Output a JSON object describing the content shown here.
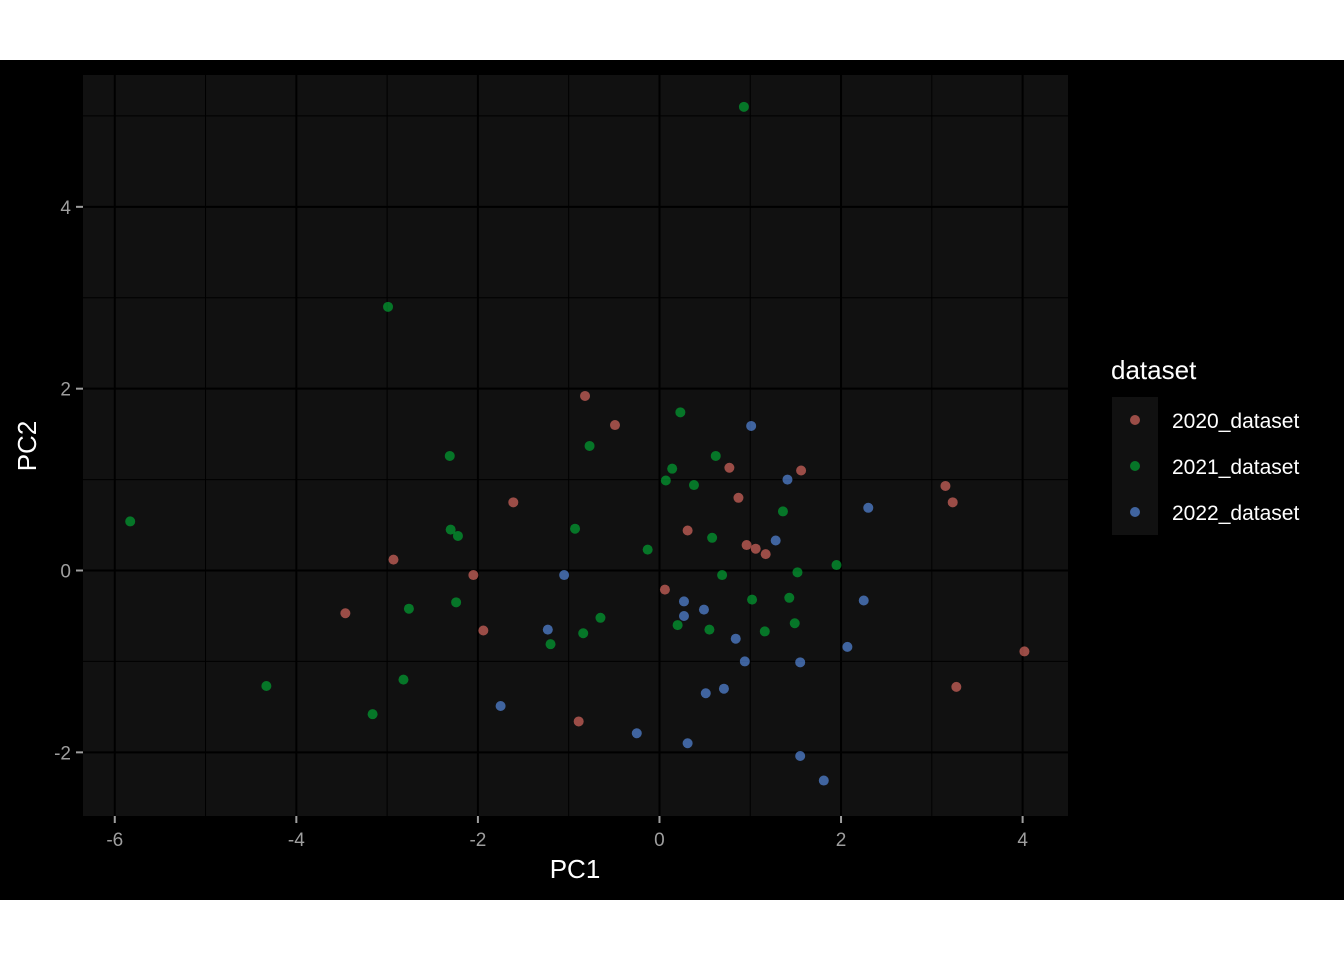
{
  "chart_data": {
    "type": "scatter",
    "xlabel": "PC1",
    "ylabel": "PC2",
    "xlim": [
      -6.35,
      4.5
    ],
    "ylim": [
      -2.7,
      5.45
    ],
    "x_ticks": [
      -6,
      -4,
      -2,
      0,
      2,
      4
    ],
    "y_ticks": [
      -2,
      0,
      2,
      4
    ],
    "grid": true,
    "legend": {
      "title": "dataset",
      "position": "right"
    },
    "series": [
      {
        "name": "2020_dataset",
        "color": "#F8766D",
        "points": [
          [
            -0.82,
            1.92
          ],
          [
            -0.49,
            1.6
          ],
          [
            -1.61,
            0.75
          ],
          [
            0.77,
            1.13
          ],
          [
            1.56,
            1.1
          ],
          [
            0.87,
            0.8
          ],
          [
            0.31,
            0.44
          ],
          [
            0.96,
            0.28
          ],
          [
            1.06,
            0.24
          ],
          [
            1.17,
            0.18
          ],
          [
            3.15,
            0.93
          ],
          [
            3.23,
            0.75
          ],
          [
            -2.93,
            0.12
          ],
          [
            -2.05,
            -0.05
          ],
          [
            -3.46,
            -0.47
          ],
          [
            0.06,
            -0.21
          ],
          [
            -1.94,
            -0.66
          ],
          [
            -0.89,
            -1.66
          ],
          [
            4.02,
            -0.89
          ],
          [
            3.27,
            -1.28
          ]
        ]
      },
      {
        "name": "2021_dataset",
        "color": "#00BA38",
        "points": [
          [
            0.93,
            5.1
          ],
          [
            -2.99,
            2.9
          ],
          [
            0.23,
            1.74
          ],
          [
            -0.77,
            1.37
          ],
          [
            -2.31,
            1.26
          ],
          [
            0.62,
            1.26
          ],
          [
            0.14,
            1.12
          ],
          [
            0.07,
            0.99
          ],
          [
            0.38,
            0.94
          ],
          [
            -5.83,
            0.54
          ],
          [
            -0.93,
            0.46
          ],
          [
            -2.3,
            0.45
          ],
          [
            -2.22,
            0.38
          ],
          [
            0.58,
            0.36
          ],
          [
            -0.13,
            0.23
          ],
          [
            1.36,
            0.65
          ],
          [
            1.95,
            0.06
          ],
          [
            1.52,
            -0.02
          ],
          [
            0.69,
            -0.05
          ],
          [
            1.02,
            -0.32
          ],
          [
            1.43,
            -0.3
          ],
          [
            -2.76,
            -0.42
          ],
          [
            -2.24,
            -0.35
          ],
          [
            -0.65,
            -0.52
          ],
          [
            1.49,
            -0.58
          ],
          [
            0.2,
            -0.6
          ],
          [
            0.55,
            -0.65
          ],
          [
            1.16,
            -0.67
          ],
          [
            -0.84,
            -0.69
          ],
          [
            -1.2,
            -0.81
          ],
          [
            -4.33,
            -1.27
          ],
          [
            -2.82,
            -1.2
          ],
          [
            -3.16,
            -1.58
          ]
        ]
      },
      {
        "name": "2022_dataset",
        "color": "#619CFF",
        "points": [
          [
            1.01,
            1.59
          ],
          [
            1.41,
            1.0
          ],
          [
            2.3,
            0.69
          ],
          [
            1.28,
            0.33
          ],
          [
            -1.05,
            -0.05
          ],
          [
            0.27,
            -0.34
          ],
          [
            2.25,
            -0.33
          ],
          [
            0.49,
            -0.43
          ],
          [
            0.27,
            -0.5
          ],
          [
            -1.23,
            -0.65
          ],
          [
            0.84,
            -0.75
          ],
          [
            2.07,
            -0.84
          ],
          [
            0.94,
            -1.0
          ],
          [
            1.55,
            -1.01
          ],
          [
            0.51,
            -1.35
          ],
          [
            0.71,
            -1.3
          ],
          [
            -1.75,
            -1.49
          ],
          [
            -0.25,
            -1.79
          ],
          [
            0.31,
            -1.9
          ],
          [
            1.55,
            -2.04
          ],
          [
            1.81,
            -2.31
          ]
        ]
      }
    ]
  }
}
